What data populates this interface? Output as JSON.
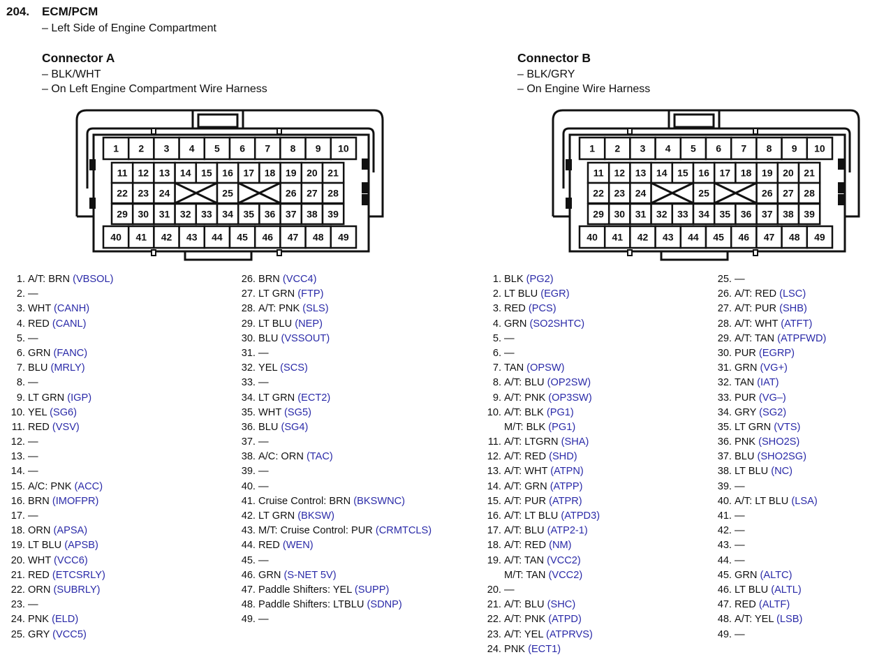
{
  "header": {
    "number": "204.",
    "title": "ECM/PCM",
    "location": "– Left Side of Engine Compartment"
  },
  "code_color": "#2a2aa8",
  "pin_layout": [
    [
      1,
      2,
      3,
      4,
      5,
      6,
      7,
      8,
      9,
      10
    ],
    [
      11,
      12,
      13,
      14,
      15,
      16,
      17,
      18,
      19,
      20,
      21
    ],
    [
      22,
      23,
      24,
      "X",
      25,
      "X",
      26,
      27,
      28
    ],
    [
      29,
      30,
      31,
      32,
      33,
      34,
      35,
      36,
      37,
      38,
      39
    ],
    [
      40,
      41,
      42,
      43,
      44,
      45,
      46,
      47,
      48,
      49
    ]
  ],
  "connectors": [
    {
      "title": "Connector A",
      "notes": [
        "– BLK/WHT",
        "– On Left Engine Compartment Wire Harness"
      ],
      "columns": [
        [
          {
            "n": "1.",
            "l": [
              {
                "t": "A/T: BRN",
                "c": "(VBSOL)"
              }
            ]
          },
          {
            "n": "2.",
            "l": [
              {
                "t": "—"
              }
            ]
          },
          {
            "n": "3.",
            "l": [
              {
                "t": "WHT",
                "c": "(CANH)"
              }
            ]
          },
          {
            "n": "4.",
            "l": [
              {
                "t": "RED",
                "c": "(CANL)"
              }
            ]
          },
          {
            "n": "5.",
            "l": [
              {
                "t": "—"
              }
            ]
          },
          {
            "n": "6.",
            "l": [
              {
                "t": "GRN",
                "c": "(FANC)"
              }
            ]
          },
          {
            "n": "7.",
            "l": [
              {
                "t": "BLU",
                "c": "(MRLY)"
              }
            ]
          },
          {
            "n": "8.",
            "l": [
              {
                "t": "—"
              }
            ]
          },
          {
            "n": "9.",
            "l": [
              {
                "t": "LT GRN",
                "c": "(IGP)"
              }
            ]
          },
          {
            "n": "10.",
            "l": [
              {
                "t": "YEL",
                "c": "(SG6)"
              }
            ]
          },
          {
            "n": "11.",
            "l": [
              {
                "t": "RED",
                "c": "(VSV)"
              }
            ]
          },
          {
            "n": "12.",
            "l": [
              {
                "t": "—"
              }
            ]
          },
          {
            "n": "13.",
            "l": [
              {
                "t": "—"
              }
            ]
          },
          {
            "n": "14.",
            "l": [
              {
                "t": "—"
              }
            ]
          },
          {
            "n": "15.",
            "l": [
              {
                "t": "A/C: PNK",
                "c": "(ACC)"
              }
            ]
          },
          {
            "n": "16.",
            "l": [
              {
                "t": "BRN",
                "c": "(IMOFPR)"
              }
            ]
          },
          {
            "n": "17.",
            "l": [
              {
                "t": "—"
              }
            ]
          },
          {
            "n": "18.",
            "l": [
              {
                "t": "ORN",
                "c": "(APSA)"
              }
            ]
          },
          {
            "n": "19.",
            "l": [
              {
                "t": "LT BLU",
                "c": "(APSB)"
              }
            ]
          },
          {
            "n": "20.",
            "l": [
              {
                "t": "WHT",
                "c": "(VCC6)"
              }
            ]
          },
          {
            "n": "21.",
            "l": [
              {
                "t": "RED",
                "c": "(ETCSRLY)"
              }
            ]
          },
          {
            "n": "22.",
            "l": [
              {
                "t": "ORN",
                "c": "(SUBRLY)"
              }
            ]
          },
          {
            "n": "23.",
            "l": [
              {
                "t": "—"
              }
            ]
          },
          {
            "n": "24.",
            "l": [
              {
                "t": "PNK",
                "c": "(ELD)"
              }
            ]
          },
          {
            "n": "25.",
            "l": [
              {
                "t": "GRY",
                "c": "(VCC5)"
              }
            ]
          }
        ],
        [
          {
            "n": "26.",
            "l": [
              {
                "t": "BRN",
                "c": "(VCC4)"
              }
            ]
          },
          {
            "n": "27.",
            "l": [
              {
                "t": "LT GRN",
                "c": "(FTP)"
              }
            ]
          },
          {
            "n": "28.",
            "l": [
              {
                "t": "A/T: PNK",
                "c": "(SLS)"
              }
            ]
          },
          {
            "n": "29.",
            "l": [
              {
                "t": "LT BLU",
                "c": "(NEP)"
              }
            ]
          },
          {
            "n": "30.",
            "l": [
              {
                "t": "BLU",
                "c": "(VSSOUT)"
              }
            ]
          },
          {
            "n": "31.",
            "l": [
              {
                "t": "—"
              }
            ]
          },
          {
            "n": "32.",
            "l": [
              {
                "t": "YEL",
                "c": "(SCS)"
              }
            ]
          },
          {
            "n": "33.",
            "l": [
              {
                "t": "—"
              }
            ]
          },
          {
            "n": "34.",
            "l": [
              {
                "t": "LT GRN",
                "c": "(ECT2)"
              }
            ]
          },
          {
            "n": "35.",
            "l": [
              {
                "t": "WHT",
                "c": "(SG5)"
              }
            ]
          },
          {
            "n": "36.",
            "l": [
              {
                "t": "BLU",
                "c": "(SG4)"
              }
            ]
          },
          {
            "n": "37.",
            "l": [
              {
                "t": "—"
              }
            ]
          },
          {
            "n": "38.",
            "l": [
              {
                "t": "A/C: ORN",
                "c": "(TAC)"
              }
            ]
          },
          {
            "n": "39.",
            "l": [
              {
                "t": "—"
              }
            ]
          },
          {
            "n": "40.",
            "l": [
              {
                "t": "—"
              }
            ]
          },
          {
            "n": "41.",
            "l": [
              {
                "t": "Cruise Control: BRN",
                "c": "(BKSWNC)"
              }
            ]
          },
          {
            "n": "42.",
            "l": [
              {
                "t": "LT GRN",
                "c": "(BKSW)"
              }
            ]
          },
          {
            "n": "43.",
            "l": [
              {
                "t": "M/T: Cruise Control: PUR",
                "c": "(CRMTCLS)"
              }
            ]
          },
          {
            "n": "44.",
            "l": [
              {
                "t": "RED",
                "c": "(WEN)"
              }
            ]
          },
          {
            "n": "45.",
            "l": [
              {
                "t": "—"
              }
            ]
          },
          {
            "n": "46.",
            "l": [
              {
                "t": "GRN",
                "c": "(S-NET 5V)"
              }
            ]
          },
          {
            "n": "47.",
            "l": [
              {
                "t": "Paddle Shifters: YEL",
                "c": "(SUPP)"
              }
            ]
          },
          {
            "n": "48.",
            "l": [
              {
                "t": "Paddle Shifters: LTBLU ",
                "c": "(SDNP)"
              }
            ]
          },
          {
            "n": "49.",
            "l": [
              {
                "t": "—"
              }
            ]
          }
        ]
      ]
    },
    {
      "title": "Connector B",
      "notes": [
        "– BLK/GRY",
        "– On Engine Wire Harness"
      ],
      "columns": [
        [
          {
            "n": "1.",
            "l": [
              {
                "t": "BLK",
                "c": "(PG2)"
              }
            ]
          },
          {
            "n": "2.",
            "l": [
              {
                "t": "LT BLU",
                "c": "(EGR)"
              }
            ]
          },
          {
            "n": "3.",
            "l": [
              {
                "t": "RED",
                "c": "(PCS)"
              }
            ]
          },
          {
            "n": "4.",
            "l": [
              {
                "t": "GRN",
                "c": "(SO2SHTC)"
              }
            ]
          },
          {
            "n": "5.",
            "l": [
              {
                "t": "—"
              }
            ]
          },
          {
            "n": "6.",
            "l": [
              {
                "t": "—"
              }
            ]
          },
          {
            "n": "7.",
            "l": [
              {
                "t": "TAN",
                "c": "(OPSW)"
              }
            ]
          },
          {
            "n": "8.",
            "l": [
              {
                "t": "A/T: BLU",
                "c": "(OP2SW)"
              }
            ]
          },
          {
            "n": "9.",
            "l": [
              {
                "t": "A/T: PNK",
                "c": "(OP3SW)"
              }
            ]
          },
          {
            "n": "10.",
            "l": [
              {
                "t": "A/T: BLK",
                "c": "(PG1)"
              },
              {
                "t": "M/T: BLK",
                "c": "(PG1)"
              }
            ]
          },
          {
            "n": "11.",
            "l": [
              {
                "t": "A/T: LTGRN ",
                "c": "(SHA)"
              }
            ]
          },
          {
            "n": "12.",
            "l": [
              {
                "t": "A/T: RED",
                "c": "(SHD)"
              }
            ]
          },
          {
            "n": "13.",
            "l": [
              {
                "t": "A/T: WHT",
                "c": "(ATPN)"
              }
            ]
          },
          {
            "n": "14.",
            "l": [
              {
                "t": "A/T: GRN",
                "c": "(ATPP)"
              }
            ]
          },
          {
            "n": "15.",
            "l": [
              {
                "t": "A/T: PUR",
                "c": "(ATPR)"
              }
            ]
          },
          {
            "n": "16.",
            "l": [
              {
                "t": "A/T: LT BLU",
                "c": "(ATPD3)"
              }
            ]
          },
          {
            "n": "17.",
            "l": [
              {
                "t": "A/T: BLU",
                "c": "(ATP2-1)"
              }
            ]
          },
          {
            "n": "18.",
            "l": [
              {
                "t": "A/T: RED",
                "c": "(NM)"
              }
            ]
          },
          {
            "n": "19.",
            "l": [
              {
                "t": "A/T: TAN",
                "c": "(VCC2)"
              },
              {
                "t": "M/T: TAN",
                "c": "(VCC2)"
              }
            ]
          },
          {
            "n": "20.",
            "l": [
              {
                "t": "—"
              }
            ]
          },
          {
            "n": "21.",
            "l": [
              {
                "t": "A/T: BLU",
                "c": "(SHC)"
              }
            ]
          },
          {
            "n": "22.",
            "l": [
              {
                "t": "A/T: PNK",
                "c": "(ATPD)"
              }
            ]
          },
          {
            "n": "23.",
            "l": [
              {
                "t": "A/T: YEL",
                "c": "(ATPRVS)"
              }
            ]
          },
          {
            "n": "24.",
            "l": [
              {
                "t": "PNK",
                "c": "(ECT1)"
              }
            ]
          }
        ],
        [
          {
            "n": "25.",
            "l": [
              {
                "t": "—"
              }
            ]
          },
          {
            "n": "26.",
            "l": [
              {
                "t": "A/T: RED",
                "c": "(LSC)"
              }
            ]
          },
          {
            "n": "27.",
            "l": [
              {
                "t": "A/T: PUR",
                "c": "(SHB)"
              }
            ]
          },
          {
            "n": "28.",
            "l": [
              {
                "t": "A/T: WHT",
                "c": "(ATFT)"
              }
            ]
          },
          {
            "n": "29.",
            "l": [
              {
                "t": "A/T: TAN",
                "c": "(ATPFWD)"
              }
            ]
          },
          {
            "n": "30.",
            "l": [
              {
                "t": "PUR",
                "c": "(EGRP)"
              }
            ]
          },
          {
            "n": "31.",
            "l": [
              {
                "t": "GRN",
                "c": "(VG+)"
              }
            ]
          },
          {
            "n": "32.",
            "l": [
              {
                "t": "TAN",
                "c": "(IAT)"
              }
            ]
          },
          {
            "n": "33.",
            "l": [
              {
                "t": "PUR",
                "c": "(VG–)"
              }
            ]
          },
          {
            "n": "34.",
            "l": [
              {
                "t": "GRY",
                "c": "(SG2)"
              }
            ]
          },
          {
            "n": "35.",
            "l": [
              {
                "t": "LT GRN",
                "c": "(VTS)"
              }
            ]
          },
          {
            "n": "36.",
            "l": [
              {
                "t": "PNK",
                "c": "(SHO2S)"
              }
            ]
          },
          {
            "n": "37.",
            "l": [
              {
                "t": "BLU",
                "c": "(SHO2SG)"
              }
            ]
          },
          {
            "n": "38.",
            "l": [
              {
                "t": "LT BLU",
                "c": "(NC)"
              }
            ]
          },
          {
            "n": "39.",
            "l": [
              {
                "t": "—"
              }
            ]
          },
          {
            "n": "40.",
            "l": [
              {
                "t": "A/T: LT BLU",
                "c": "(LSA)"
              }
            ]
          },
          {
            "n": "41.",
            "l": [
              {
                "t": "—"
              }
            ]
          },
          {
            "n": "42.",
            "l": [
              {
                "t": "—"
              }
            ]
          },
          {
            "n": "43.",
            "l": [
              {
                "t": "—"
              }
            ]
          },
          {
            "n": "44.",
            "l": [
              {
                "t": "—"
              }
            ]
          },
          {
            "n": "45.",
            "l": [
              {
                "t": "GRN",
                "c": "(ALTC)"
              }
            ]
          },
          {
            "n": "46.",
            "l": [
              {
                "t": "LT BLU",
                "c": "(ALTL)"
              }
            ]
          },
          {
            "n": "47.",
            "l": [
              {
                "t": "RED",
                "c": "(ALTF)"
              }
            ]
          },
          {
            "n": "48.",
            "l": [
              {
                "t": "A/T: YEL",
                "c": "(LSB)"
              }
            ]
          },
          {
            "n": "49.",
            "l": [
              {
                "t": "—"
              }
            ]
          }
        ]
      ]
    }
  ]
}
